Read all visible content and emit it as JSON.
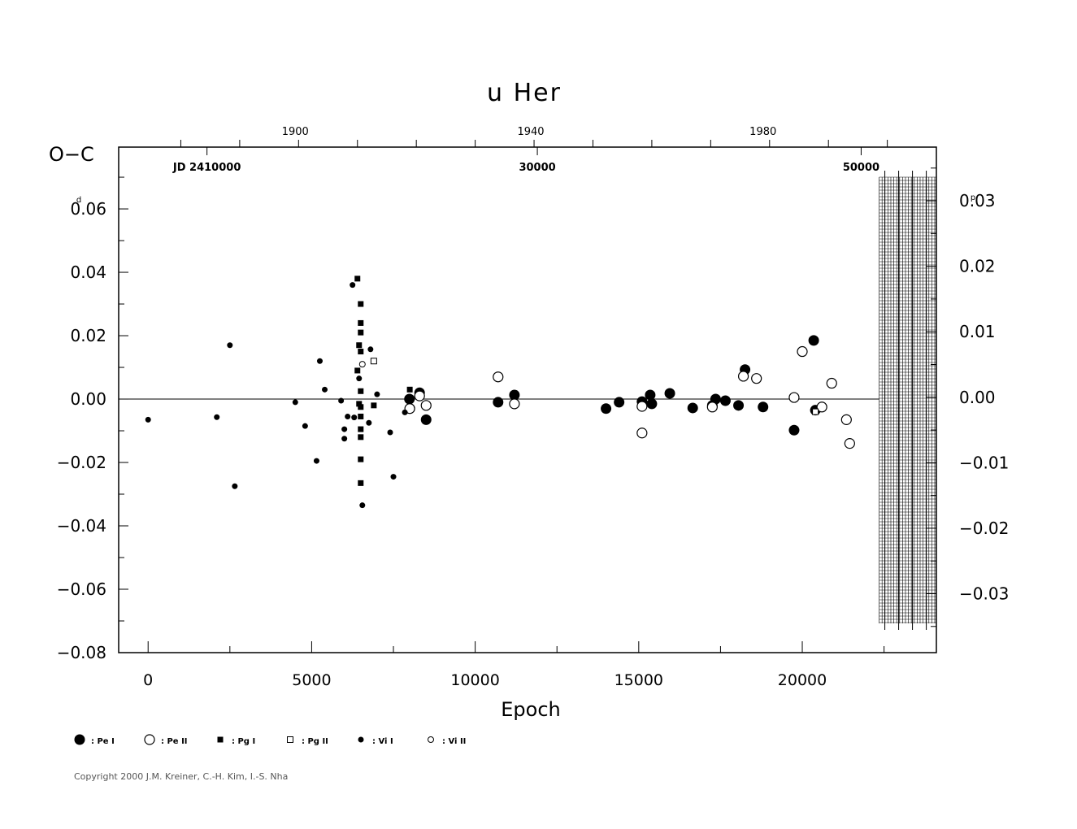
{
  "chart_data": {
    "type": "scatter",
    "title": "u  Her",
    "xlabel": "Epoch",
    "ylabel": "O−C",
    "ylabel_unit": "d",
    "y2_unit": "p",
    "xlim": [
      -900,
      24100
    ],
    "ylim": [
      -0.08,
      0.0795
    ],
    "y2lim": [
      -0.039,
      0.0382
    ],
    "x_ticks": [
      0,
      5000,
      10000,
      15000,
      20000
    ],
    "x_tick_labels": [
      "0",
      "5000",
      "10000",
      "15000",
      "20000"
    ],
    "y_ticks": [
      -0.08,
      -0.06,
      -0.04,
      -0.02,
      0.0,
      0.02,
      0.04,
      0.06
    ],
    "y_tick_labels": [
      "−0.08",
      "−0.06",
      "−0.04",
      "−0.02",
      "0.00",
      "0.02",
      "0.04",
      "0.06"
    ],
    "y2_ticks": [
      -0.03,
      -0.02,
      -0.01,
      0.0,
      0.01,
      0.02,
      0.03
    ],
    "y2_tick_labels": [
      "−0.03",
      "−0.02",
      "−0.01",
      "0.00",
      "0.01",
      "0.02",
      "0.03"
    ],
    "top_year_labels": [
      {
        "epoch": 4500,
        "label": "1900"
      },
      {
        "epoch": 11700,
        "label": "1940"
      },
      {
        "epoch": 18800,
        "label": "1980"
      }
    ],
    "jd_labels": [
      {
        "epoch": 1800,
        "label": "JD 2410000"
      },
      {
        "epoch": 11900,
        "label": "30000"
      },
      {
        "epoch": 21800,
        "label": "50000"
      }
    ],
    "future_start_epoch": 22350,
    "legend": [
      {
        "marker": "filled-circle-large",
        "label": ": Pe I"
      },
      {
        "marker": "open-circle-large",
        "label": ": Pe II"
      },
      {
        "marker": "filled-square",
        "label": ": Pg I"
      },
      {
        "marker": "open-square",
        "label": ": Pg II"
      },
      {
        "marker": "filled-circle-small",
        "label": ": Vi I"
      },
      {
        "marker": "open-circle-small",
        "label": ": Vi II"
      }
    ],
    "series": [
      {
        "marker": "filled-circle-large",
        "points": [
          [
            7990,
            0.0
          ],
          [
            8300,
            0.002
          ],
          [
            8500,
            -0.0065
          ],
          [
            10700,
            -0.001
          ],
          [
            11200,
            0.0013
          ],
          [
            14000,
            -0.003
          ],
          [
            14400,
            -0.001
          ],
          [
            15100,
            -0.0008
          ],
          [
            15350,
            0.0013
          ],
          [
            15400,
            -0.0015
          ],
          [
            15950,
            0.0018
          ],
          [
            16650,
            -0.0028
          ],
          [
            17250,
            -0.002
          ],
          [
            17350,
            0.0
          ],
          [
            17650,
            -0.0005
          ],
          [
            18050,
            -0.002
          ],
          [
            18250,
            0.0093
          ],
          [
            18800,
            -0.0025
          ],
          [
            19750,
            -0.0098
          ],
          [
            20350,
            0.0185
          ],
          [
            20400,
            -0.0035
          ]
        ]
      },
      {
        "marker": "open-circle-large",
        "points": [
          [
            8000,
            -0.003
          ],
          [
            8300,
            0.001
          ],
          [
            8500,
            -0.002
          ],
          [
            10700,
            0.007
          ],
          [
            11200,
            -0.0015
          ],
          [
            15100,
            -0.0023
          ],
          [
            15100,
            -0.0107
          ],
          [
            17250,
            -0.0025
          ],
          [
            18200,
            0.0072
          ],
          [
            18600,
            0.0065
          ],
          [
            19750,
            0.0005
          ],
          [
            20000,
            0.015
          ],
          [
            20600,
            -0.0025
          ],
          [
            20900,
            0.005
          ],
          [
            21350,
            -0.0065
          ],
          [
            21450,
            -0.014
          ]
        ]
      },
      {
        "marker": "filled-square",
        "points": [
          [
            6400,
            0.038
          ],
          [
            6500,
            0.03
          ],
          [
            6500,
            0.024
          ],
          [
            6500,
            0.021
          ],
          [
            6450,
            0.017
          ],
          [
            6500,
            0.015
          ],
          [
            6400,
            0.009
          ],
          [
            6500,
            0.0025
          ],
          [
            6450,
            -0.0015
          ],
          [
            6500,
            -0.0025
          ],
          [
            6500,
            -0.0055
          ],
          [
            6500,
            -0.0095
          ],
          [
            6500,
            -0.012
          ],
          [
            6500,
            -0.019
          ],
          [
            6500,
            -0.0265
          ],
          [
            6900,
            -0.002
          ],
          [
            8000,
            0.003
          ]
        ]
      },
      {
        "marker": "open-square",
        "points": [
          [
            6900,
            0.012
          ],
          [
            20400,
            -0.004
          ]
        ]
      },
      {
        "marker": "filled-circle-small",
        "points": [
          [
            0,
            -0.0065
          ],
          [
            2100,
            -0.0057
          ],
          [
            2500,
            0.017
          ],
          [
            2650,
            -0.0275
          ],
          [
            4500,
            -0.001
          ],
          [
            4800,
            -0.0085
          ],
          [
            5150,
            -0.0195
          ],
          [
            5250,
            0.012
          ],
          [
            5400,
            0.003
          ],
          [
            5900,
            -0.0005
          ],
          [
            6000,
            -0.0095
          ],
          [
            6000,
            -0.0125
          ],
          [
            6100,
            -0.0055
          ],
          [
            6250,
            0.036
          ],
          [
            6300,
            -0.0058
          ],
          [
            6450,
            0.0065
          ],
          [
            6550,
            -0.0335
          ],
          [
            6750,
            -0.0075
          ],
          [
            6800,
            0.0157
          ],
          [
            7000,
            0.0015
          ],
          [
            7400,
            -0.0105
          ],
          [
            7500,
            -0.0245
          ],
          [
            7850,
            -0.0042
          ]
        ]
      },
      {
        "marker": "open-circle-small",
        "points": [
          [
            6550,
            0.011
          ]
        ]
      }
    ]
  },
  "copyright": "Copyright 2000 J.M. Kreiner, C.-H. Kim, I.-S. Nha"
}
